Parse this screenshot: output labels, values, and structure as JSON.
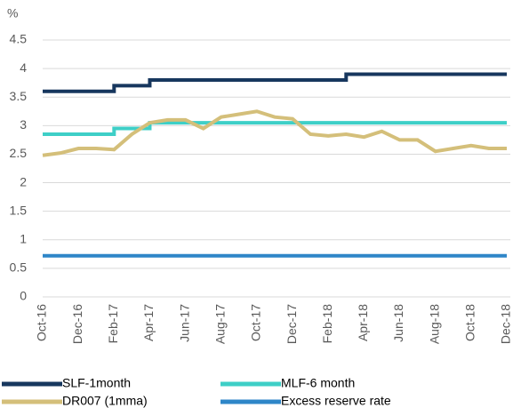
{
  "chart_data": {
    "type": "line",
    "y_unit": "%",
    "categories": [
      "Oct-16",
      null,
      "Dec-16",
      null,
      "Feb-17",
      null,
      "Apr-17",
      null,
      "Jun-17",
      null,
      "Aug-17",
      null,
      "Oct-17",
      null,
      "Dec-17",
      null,
      "Feb-18",
      null,
      "Apr-18",
      null,
      "Jun-18",
      null,
      "Aug-18",
      null,
      "Oct-18",
      null,
      "Dec-18"
    ],
    "series": [
      {
        "name": "SLF-1month",
        "color": "#17375e",
        "step": true,
        "values": [
          3.6,
          3.6,
          3.6,
          3.6,
          3.7,
          3.7,
          3.8,
          3.8,
          3.8,
          3.8,
          3.8,
          3.8,
          3.8,
          3.8,
          3.8,
          3.8,
          3.8,
          3.9,
          3.9,
          3.9,
          3.9,
          3.9,
          3.9,
          3.9,
          3.9,
          3.9,
          3.9
        ]
      },
      {
        "name": "MLF-6 month",
        "color": "#3ecfc7",
        "step": true,
        "values": [
          2.85,
          2.85,
          2.85,
          2.85,
          2.95,
          2.95,
          3.05,
          3.05,
          3.05,
          3.05,
          3.05,
          3.05,
          3.05,
          3.05,
          3.05,
          3.05,
          3.05,
          3.05,
          3.05,
          3.05,
          3.05,
          3.05,
          3.05,
          3.05,
          3.05,
          3.05,
          3.05
        ]
      },
      {
        "name": "DR007 (1mma)",
        "color": "#d4bf7a",
        "step": false,
        "values": [
          2.48,
          2.52,
          2.6,
          2.6,
          2.58,
          2.85,
          3.05,
          3.1,
          3.1,
          2.95,
          3.15,
          3.2,
          3.25,
          3.15,
          3.12,
          2.85,
          2.82,
          2.85,
          2.8,
          2.9,
          2.75,
          2.75,
          2.55,
          2.6,
          2.65,
          2.6,
          2.6
        ]
      },
      {
        "name": "Excess reserve rate",
        "color": "#2e86c8",
        "step": true,
        "values": [
          0.72,
          0.72,
          0.72,
          0.72,
          0.72,
          0.72,
          0.72,
          0.72,
          0.72,
          0.72,
          0.72,
          0.72,
          0.72,
          0.72,
          0.72,
          0.72,
          0.72,
          0.72,
          0.72,
          0.72,
          0.72,
          0.72,
          0.72,
          0.72,
          0.72,
          0.72,
          0.72
        ]
      }
    ],
    "ylim": [
      0,
      4.5
    ],
    "yticks": [
      0,
      0.5,
      1,
      1.5,
      2,
      2.5,
      3,
      3.5,
      4,
      4.5
    ],
    "grid": true,
    "legend": "bottom"
  }
}
